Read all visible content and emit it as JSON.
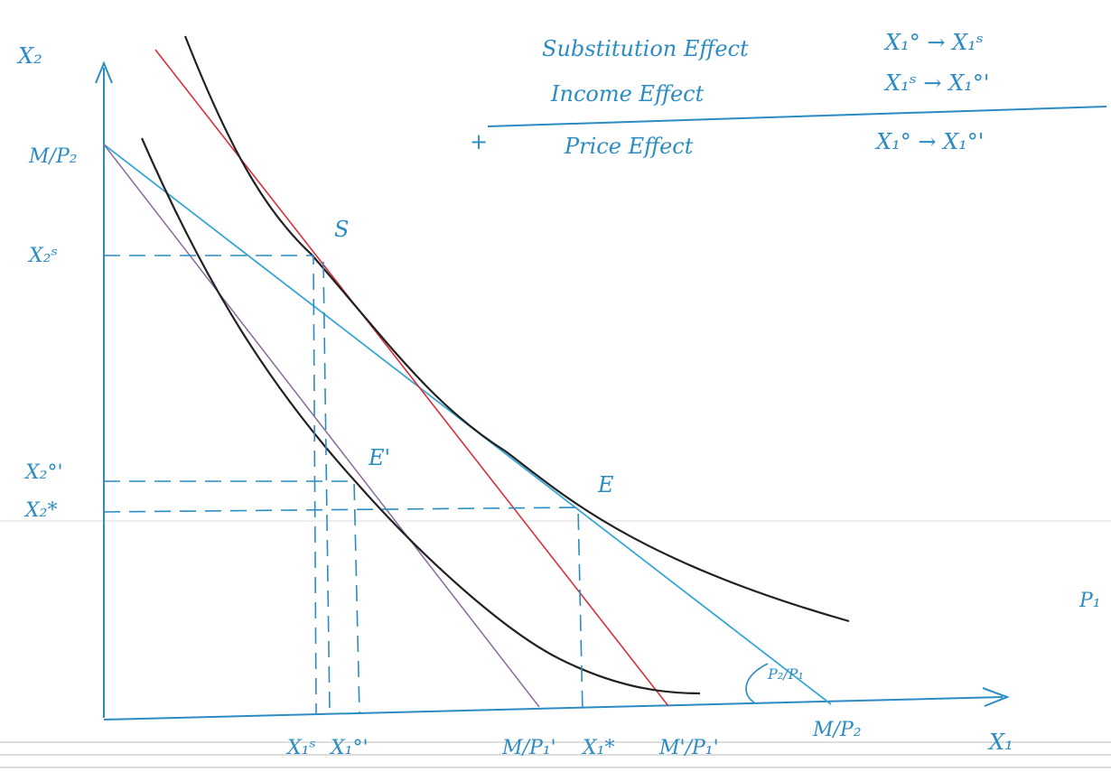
{
  "axes": {
    "y_label": "X₂",
    "x_label": "X₁"
  },
  "y_labels": [
    "M/P₂",
    "X₂ˢ",
    "X₂°'",
    "X₂*"
  ],
  "x_labels": [
    "X₁ˢ",
    "X₁°'",
    "M/P₁'",
    "X₁*",
    "M'/P₁'",
    "M/P₂"
  ],
  "points": [
    "S",
    "E'",
    "E"
  ],
  "slope_label": "P₂/P₁",
  "margin_note": "P₁",
  "legend": {
    "operator": "+",
    "rows": [
      {
        "label": "Substitution Effect",
        "change": "X₁° → X₁ˢ"
      },
      {
        "label": "Income Effect",
        "change": "X₁ˢ → X₁°'"
      },
      {
        "label": "Price Effect",
        "change": "X₁° → X₁°'"
      }
    ]
  }
}
